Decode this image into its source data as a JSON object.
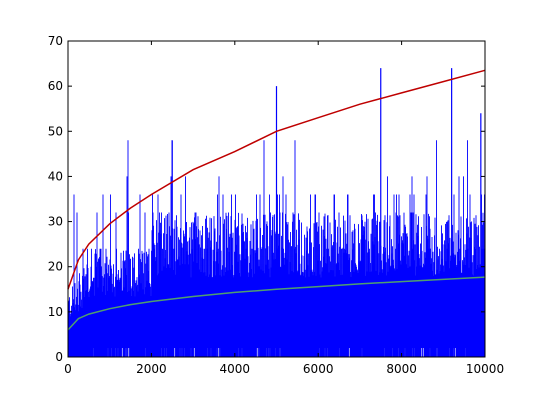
{
  "chart_data": {
    "type": "line",
    "title": "",
    "xlabel": "",
    "ylabel": "",
    "xlim": [
      0,
      10000
    ],
    "ylim": [
      0,
      70
    ],
    "grid": false,
    "x_ticks": [
      {
        "value": 0,
        "label": "0"
      },
      {
        "value": 2000,
        "label": "2000"
      },
      {
        "value": 4000,
        "label": "4000"
      },
      {
        "value": 6000,
        "label": "6000"
      },
      {
        "value": 8000,
        "label": "8000"
      },
      {
        "value": 10000,
        "label": "10000"
      }
    ],
    "y_ticks": [
      {
        "value": 0,
        "label": "0"
      },
      {
        "value": 10,
        "label": "10"
      },
      {
        "value": 20,
        "label": "20"
      },
      {
        "value": 30,
        "label": "30"
      },
      {
        "value": 40,
        "label": "40"
      },
      {
        "value": 50,
        "label": "50"
      },
      {
        "value": 60,
        "label": "60"
      },
      {
        "value": 70,
        "label": "70"
      }
    ],
    "series": [
      {
        "kind": "noisy",
        "color": "#0000ff",
        "x_range": [
          0,
          10000
        ],
        "band_floor": 2,
        "band_upper_level": 24,
        "band_upper_level_late": 32,
        "step_values": [
          24,
          32,
          36,
          40,
          48
        ],
        "peaks": [
          {
            "x": 2500,
            "y": 48
          },
          {
            "x": 5000,
            "y": 60
          },
          {
            "x": 7500,
            "y": 64
          },
          {
            "x": 9200,
            "y": 64
          },
          {
            "x": 9900,
            "y": 54
          }
        ]
      },
      {
        "kind": "curve",
        "color": "#bf0000",
        "x": [
          0,
          250,
          500,
          1000,
          1500,
          2000,
          3000,
          4000,
          5000,
          6000,
          7000,
          8000,
          9000,
          10000
        ],
        "y": [
          15,
          21.5,
          25,
          29.5,
          33,
          36,
          41.5,
          45.5,
          50,
          53,
          56,
          58.5,
          61,
          63.5
        ]
      },
      {
        "kind": "curve",
        "color": "#4f9f6f",
        "x": [
          0,
          250,
          500,
          1000,
          1500,
          2000,
          3000,
          4000,
          5000,
          6000,
          7000,
          8000,
          9000,
          10000
        ],
        "y": [
          6,
          8.5,
          9.5,
          10.7,
          11.6,
          12.3,
          13.4,
          14.3,
          15,
          15.6,
          16.2,
          16.7,
          17.2,
          17.7
        ]
      }
    ]
  }
}
